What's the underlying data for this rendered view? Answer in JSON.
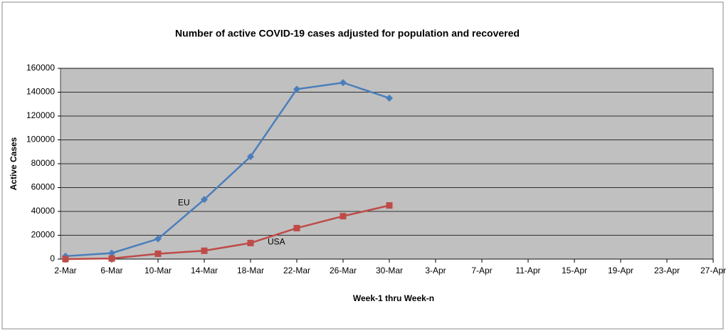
{
  "chart_data": {
    "type": "line",
    "title": "Number of active COVID-19 cases adjusted for population and recovered",
    "x_label": "Week-1 thru Week-n",
    "y_label": "Active Cases",
    "categories": [
      "2-Mar",
      "6-Mar",
      "10-Mar",
      "14-Mar",
      "18-Mar",
      "22-Mar",
      "26-Mar",
      "30-Mar",
      "3-Apr",
      "7-Apr",
      "11-Apr",
      "15-Apr",
      "19-Apr",
      "23-Apr",
      "27-Apr"
    ],
    "series": [
      {
        "name": "EU",
        "color": "#4a7ebb",
        "marker": "diamond",
        "values": [
          2500,
          5000,
          17000,
          50000,
          86000,
          142500,
          148000,
          135000,
          null,
          null,
          null,
          null,
          null,
          null,
          null
        ]
      },
      {
        "name": "USA",
        "color": "#be4b48",
        "marker": "square",
        "values": [
          0,
          500,
          4500,
          7000,
          13500,
          26000,
          36000,
          45000,
          null,
          null,
          null,
          null,
          null,
          null,
          null
        ]
      }
    ],
    "ylim": [
      0,
      160000
    ],
    "yticks": [
      0,
      20000,
      40000,
      60000,
      80000,
      100000,
      120000,
      140000,
      160000
    ],
    "grid": true,
    "plot_background": "#c0c0c0"
  }
}
